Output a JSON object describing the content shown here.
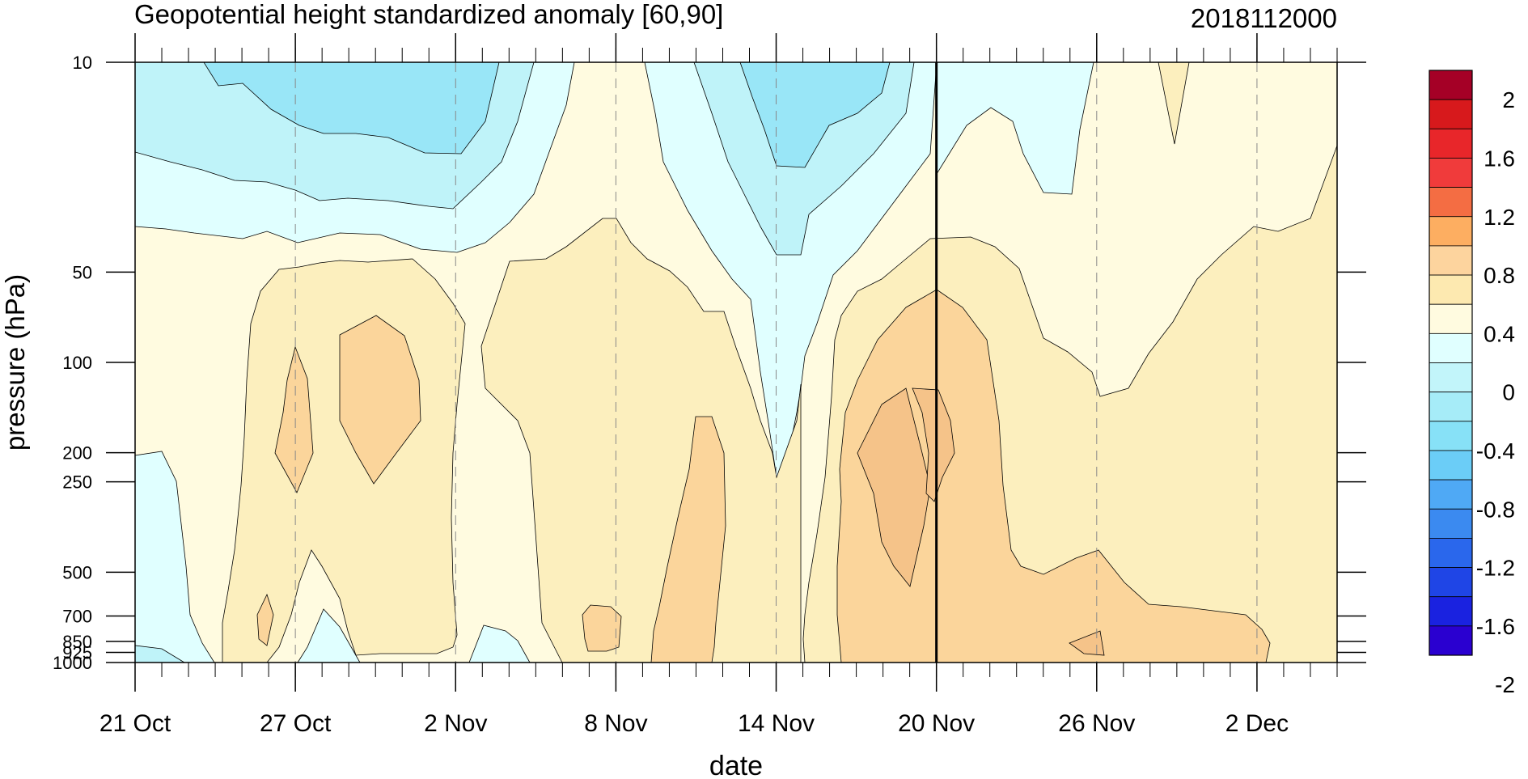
{
  "chart_data": {
    "type": "contour",
    "title": "Geopotential height standardized anomaly [60,90]",
    "timestamp": "2018112000",
    "xlabel": "date",
    "ylabel": "pressure (hPa)",
    "x_ticks": [
      {
        "label": "21 Oct",
        "day": 0
      },
      {
        "label": "27 Oct",
        "day": 6
      },
      {
        "label": "2 Nov",
        "day": 12
      },
      {
        "label": "8 Nov",
        "day": 18
      },
      {
        "label": "14 Nov",
        "day": 24
      },
      {
        "label": "20 Nov",
        "day": 30
      },
      {
        "label": "26 Nov",
        "day": 36
      },
      {
        "label": "2 Dec",
        "day": 42
      }
    ],
    "x_range_days": [
      0,
      45
    ],
    "y_ticks": [
      {
        "label": "10",
        "hPa": 10
      },
      {
        "label": "50",
        "hPa": 50
      },
      {
        "label": "100",
        "hPa": 100
      },
      {
        "label": "200",
        "hPa": 200
      },
      {
        "label": "250",
        "hPa": 250
      },
      {
        "label": "500",
        "hPa": 500
      },
      {
        "label": "700",
        "hPa": 700
      },
      {
        "label": "850",
        "hPa": 850
      },
      {
        "label": "925",
        "hPa": 925
      },
      {
        "label": "1000",
        "hPa": 1000
      }
    ],
    "y_range_hPa": [
      1000,
      10
    ],
    "y_scale": "log",
    "analysis_line_day": 30,
    "colorbar": {
      "labels": [
        "2",
        "1.6",
        "1.2",
        "0.8",
        "0.4",
        "0",
        "-0.4",
        "-0.8",
        "-1.2",
        "-1.6",
        "-2"
      ],
      "colors": [
        "#a50026",
        "#d7191c",
        "#e8262a",
        "#f03b3b",
        "#f46d43",
        "#fdae61",
        "#fdd49e",
        "#fde9b0",
        "#fffbe0",
        "#e0ffff",
        "#c2f5fa",
        "#a6ecf8",
        "#87e1f7",
        "#6bcdf7",
        "#4fa9f5",
        "#3b8af0",
        "#2a67ec",
        "#1f45e6",
        "#1a22e0",
        "#2a00d0"
      ]
    },
    "contour_fill": {
      "neg0": "#e0ffff",
      "neg1": "#bff3f9",
      "neg2": "#99e6f7",
      "pos0": "#fffbe0",
      "pos1": "#fcefbe",
      "pos2": "#fbd59b",
      "pos3": "#f5c389"
    }
  }
}
